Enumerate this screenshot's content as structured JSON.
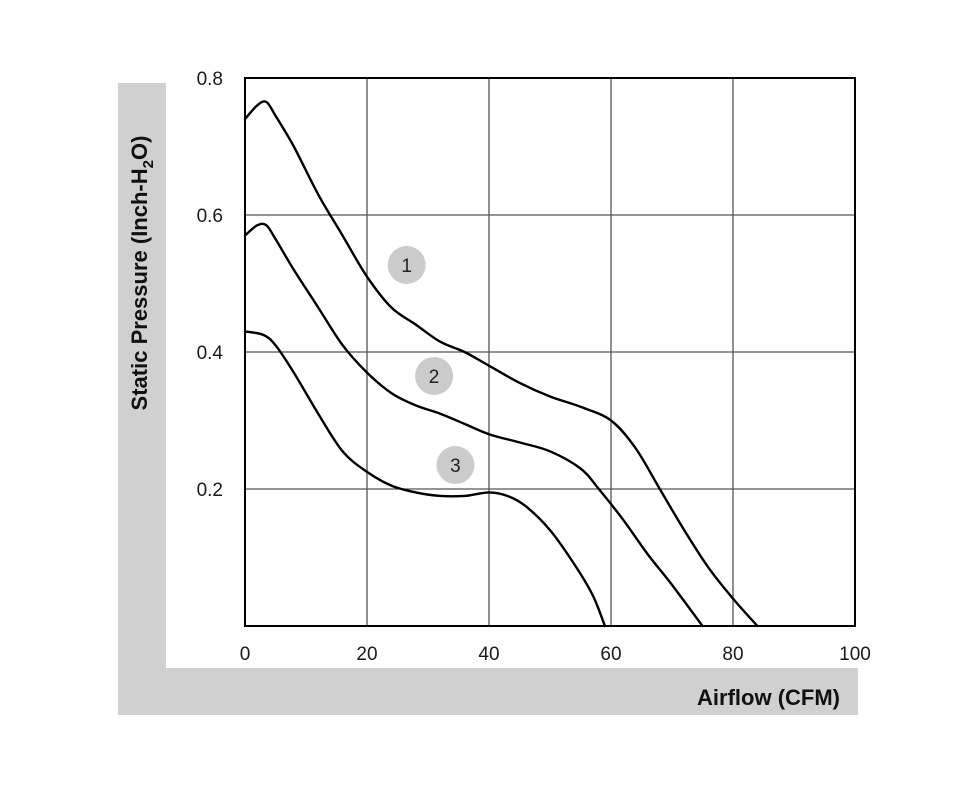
{
  "chart_data": {
    "type": "line",
    "xlabel": "Airflow (CFM)",
    "ylabel_parts": [
      "Static Pressure (Inch-H",
      "2",
      "O)"
    ],
    "xlim": [
      0,
      100
    ],
    "ylim": [
      0,
      0.8
    ],
    "x_ticks": [
      "0",
      "20",
      "40",
      "60",
      "80",
      "100"
    ],
    "y_ticks": [
      "0.2",
      "0.4",
      "0.6",
      "0.8"
    ],
    "grid": true,
    "series": [
      {
        "label": "1",
        "points": [
          [
            0,
            0.74
          ],
          [
            2,
            0.76
          ],
          [
            3.5,
            0.765
          ],
          [
            5,
            0.745
          ],
          [
            8,
            0.7
          ],
          [
            12,
            0.63
          ],
          [
            16,
            0.57
          ],
          [
            20,
            0.51
          ],
          [
            24,
            0.465
          ],
          [
            28,
            0.44
          ],
          [
            32,
            0.415
          ],
          [
            36,
            0.4
          ],
          [
            40,
            0.38
          ],
          [
            45,
            0.355
          ],
          [
            50,
            0.335
          ],
          [
            55,
            0.32
          ],
          [
            60,
            0.3
          ],
          [
            64,
            0.26
          ],
          [
            68,
            0.2
          ],
          [
            72,
            0.14
          ],
          [
            76,
            0.085
          ],
          [
            80,
            0.04
          ],
          [
            84,
            0.0
          ]
        ],
        "marker_at": [
          26.5,
          0.527
        ]
      },
      {
        "label": "2",
        "points": [
          [
            0,
            0.57
          ],
          [
            2,
            0.585
          ],
          [
            3.5,
            0.585
          ],
          [
            5,
            0.565
          ],
          [
            8,
            0.52
          ],
          [
            12,
            0.465
          ],
          [
            16,
            0.41
          ],
          [
            20,
            0.37
          ],
          [
            24,
            0.34
          ],
          [
            28,
            0.322
          ],
          [
            32,
            0.31
          ],
          [
            36,
            0.295
          ],
          [
            40,
            0.28
          ],
          [
            45,
            0.268
          ],
          [
            50,
            0.255
          ],
          [
            55,
            0.23
          ],
          [
            58,
            0.2
          ],
          [
            62,
            0.155
          ],
          [
            66,
            0.105
          ],
          [
            70,
            0.06
          ],
          [
            75,
            0.0
          ]
        ],
        "marker_at": [
          31,
          0.365
        ]
      },
      {
        "label": "3",
        "points": [
          [
            0,
            0.43
          ],
          [
            3,
            0.425
          ],
          [
            5,
            0.41
          ],
          [
            8,
            0.37
          ],
          [
            12,
            0.31
          ],
          [
            16,
            0.255
          ],
          [
            20,
            0.225
          ],
          [
            24,
            0.205
          ],
          [
            28,
            0.195
          ],
          [
            32,
            0.19
          ],
          [
            36,
            0.19
          ],
          [
            40,
            0.195
          ],
          [
            43,
            0.19
          ],
          [
            46,
            0.175
          ],
          [
            50,
            0.14
          ],
          [
            54,
            0.09
          ],
          [
            57,
            0.045
          ],
          [
            59,
            0.0
          ]
        ],
        "marker_at": [
          34.5,
          0.235
        ]
      }
    ],
    "colors": {
      "line": "#000000",
      "grid": "#555555",
      "frame": "#000000",
      "shadow": "#d0d0d0",
      "marker_fill": "#cbcbcb"
    }
  }
}
